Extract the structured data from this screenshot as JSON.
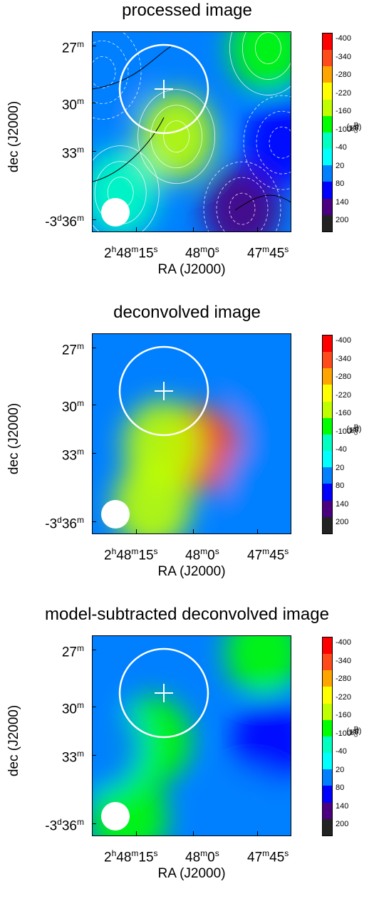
{
  "chart_data": [
    {
      "type": "heatmap",
      "title": "processed image",
      "xlabel": "RA (J2000)",
      "ylabel": "dec (J2000)",
      "x_tick_labels": [
        {
          "main": "2",
          "u1": "h",
          "m2": "48",
          "u2": "m",
          "m3": "15",
          "u3": "s"
        },
        {
          "main": "48",
          "u1": "m",
          "m2": "0",
          "u2": "s"
        },
        {
          "main": "47",
          "u1": "m",
          "m2": "45",
          "u2": "s"
        }
      ],
      "y_tick_labels": [
        {
          "main": "27",
          "u1": "m"
        },
        {
          "main": "30",
          "u1": "m"
        },
        {
          "main": "33",
          "u1": "m"
        },
        {
          "main": "-3",
          "u1": "d",
          "m2": "36",
          "u2": "m"
        }
      ],
      "colorbar": {
        "label_main": "ΔT",
        "label_sub": "CMB",
        "label_unit": "(μK)",
        "ticks": [
          "-400",
          "-340",
          "-280",
          "-220",
          "-160",
          "-100",
          "-40",
          "20",
          "80",
          "140",
          "200"
        ]
      },
      "contours": true,
      "features": [
        {
          "x": 0.42,
          "y": 0.52,
          "value": -160
        },
        {
          "x": 0.14,
          "y": 0.8,
          "value": -60
        },
        {
          "x": 0.88,
          "y": 0.08,
          "value": -100
        },
        {
          "x": 0.75,
          "y": 0.88,
          "value": 160
        },
        {
          "x": 0.95,
          "y": 0.55,
          "value": 120
        },
        {
          "x": 0.05,
          "y": 0.2,
          "value": 60
        }
      ]
    },
    {
      "type": "heatmap",
      "title": "deconvolved image",
      "xlabel": "RA (J2000)",
      "ylabel": "dec (J2000)",
      "x_tick_labels": [
        {
          "main": "2",
          "u1": "h",
          "m2": "48",
          "u2": "m",
          "m3": "15",
          "u3": "s"
        },
        {
          "main": "48",
          "u1": "m",
          "m2": "0",
          "u2": "s"
        },
        {
          "main": "47",
          "u1": "m",
          "m2": "45",
          "u2": "s"
        }
      ],
      "y_tick_labels": [
        {
          "main": "27",
          "u1": "m"
        },
        {
          "main": "30",
          "u1": "m"
        },
        {
          "main": "33",
          "u1": "m"
        },
        {
          "main": "-3",
          "u1": "d",
          "m2": "36",
          "u2": "m"
        }
      ],
      "colorbar": {
        "label_main": "ΔT",
        "label_sub": "CMB",
        "label_unit": "(μK)",
        "ticks": [
          "-400",
          "-340",
          "-280",
          "-220",
          "-160",
          "-100",
          "-40",
          "20",
          "80",
          "140",
          "200"
        ]
      },
      "contours": false,
      "features": [
        {
          "x": 0.55,
          "y": 0.57,
          "value": -300
        },
        {
          "x": 0.35,
          "y": 0.55,
          "value": -180
        },
        {
          "x": 0.3,
          "y": 0.85,
          "value": -150
        },
        {
          "x": 0.9,
          "y": 0.3,
          "value": 60
        },
        {
          "x": 0.85,
          "y": 0.75,
          "value": 60
        }
      ]
    },
    {
      "type": "heatmap",
      "title": "model-subtracted deconvolved image",
      "xlabel": "RA (J2000)",
      "ylabel": "dec (J2000)",
      "x_tick_labels": [
        {
          "main": "2",
          "u1": "h",
          "m2": "48",
          "u2": "m",
          "m3": "15",
          "u3": "s"
        },
        {
          "main": "48",
          "u1": "m",
          "m2": "0",
          "u2": "s"
        },
        {
          "main": "47",
          "u1": "m",
          "m2": "45",
          "u2": "s"
        }
      ],
      "y_tick_labels": [
        {
          "main": "27",
          "u1": "m"
        },
        {
          "main": "30",
          "u1": "m"
        },
        {
          "main": "33",
          "u1": "m"
        },
        {
          "main": "-3",
          "u1": "d",
          "m2": "36",
          "u2": "m"
        }
      ],
      "colorbar": {
        "label_main": "ΔT",
        "label_sub": "CMB",
        "label_unit": "(μK)",
        "ticks": [
          "-400",
          "-340",
          "-280",
          "-220",
          "-160",
          "-100",
          "-40",
          "20",
          "80",
          "140",
          "200"
        ]
      },
      "contours": false,
      "features": [
        {
          "x": 0.3,
          "y": 0.52,
          "value": -80
        },
        {
          "x": 0.18,
          "y": 0.9,
          "value": -100
        },
        {
          "x": 0.86,
          "y": 0.08,
          "value": -80
        },
        {
          "x": 0.9,
          "y": 0.52,
          "value": 100
        },
        {
          "x": 0.05,
          "y": 0.55,
          "value": 90
        },
        {
          "x": 0.8,
          "y": 0.88,
          "value": 90
        }
      ]
    }
  ],
  "colorscale": [
    "#ff0000",
    "#ff4a1a",
    "#ffa500",
    "#ffff00",
    "#bfff00",
    "#00ff00",
    "#00ffc0",
    "#00ffff",
    "#0080ff",
    "#0000ff",
    "#4b0082",
    "#222222"
  ],
  "annotations": {
    "circle_color": "#ffffff",
    "cross_color": "#ffffff",
    "beam_color": "#ffffff"
  }
}
